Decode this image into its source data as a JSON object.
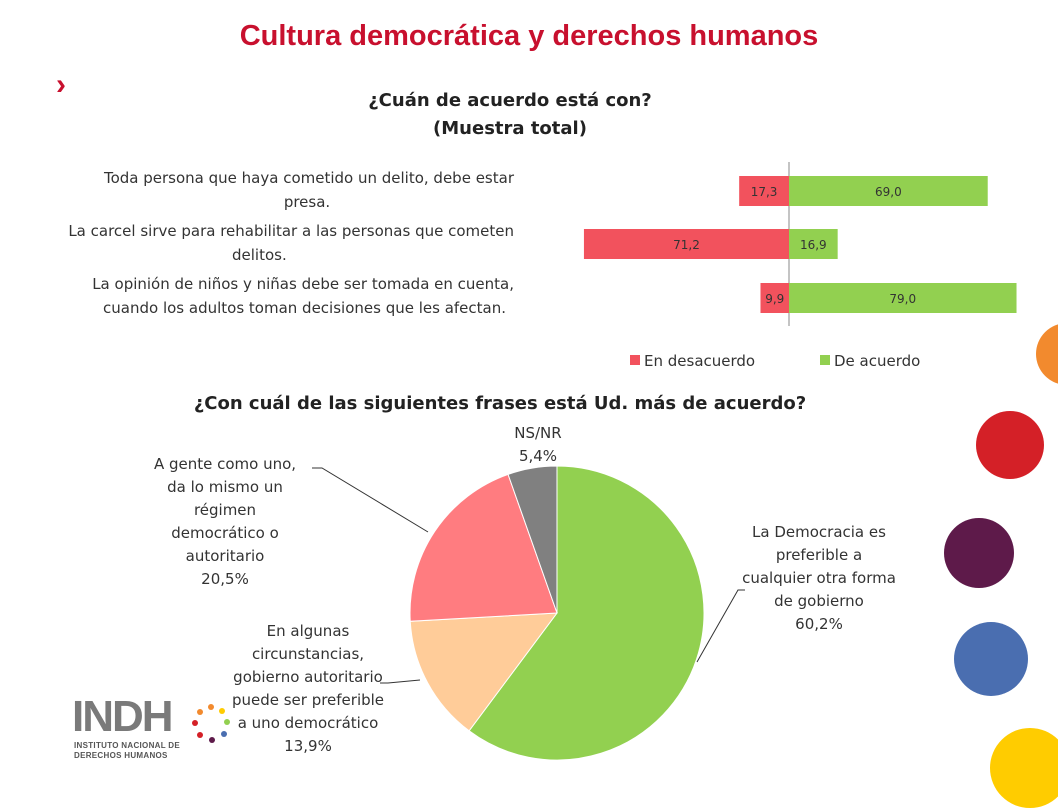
{
  "header": {
    "title": "Cultura democrática y derechos humanos",
    "chevron": "›"
  },
  "colors": {
    "red": "#f2525d",
    "green": "#92d050",
    "salmon": "#ff7c80",
    "peach": "#ffcc99",
    "gray": "#808080",
    "brand": "#c8102e"
  },
  "chart_data": [
    {
      "type": "bar",
      "orientation": "horizontal-diverging",
      "title": "¿Cuán de acuerdo está con?",
      "subtitle": "(Muestra total)",
      "categories": [
        "Toda persona que haya cometido un delito, debe estar presa.",
        "La carcel sirve para rehabilitar a las personas que cometen delitos.",
        "La opinión de niños y niñas debe ser tomada en cuenta, cuando los adultos toman decisiones que les afectan."
      ],
      "category_lines": [
        [
          "Toda persona que haya cometido un delito, debe estar",
          "presa."
        ],
        [
          "La carcel sirve para rehabilitar a las personas que cometen",
          "delitos."
        ],
        [
          "La opinión de niños y niñas debe ser tomada en cuenta,",
          "cuando los adultos toman decisiones que les afectan."
        ]
      ],
      "series": [
        {
          "name": "En desacuerdo",
          "values": [
            17.3,
            71.2,
            9.9
          ],
          "labels": [
            "17,3",
            "71,2",
            "9,9"
          ],
          "color": "#f2525d"
        },
        {
          "name": "De acuerdo",
          "values": [
            69.0,
            16.9,
            79.0
          ],
          "labels": [
            "69,0",
            "16,9",
            "79,0"
          ],
          "color": "#92d050"
        }
      ],
      "legend": "bottom-right"
    },
    {
      "type": "pie",
      "title": "¿Con cuál de las siguientes frases está Ud. más de acuerdo?",
      "slices": [
        {
          "label": "La Democracia es preferible a cualquier otra forma de gobierno",
          "lines": [
            "La Democracia es",
            "preferible a",
            "cualquier otra forma",
            "de gobierno"
          ],
          "value": 60.2,
          "value_label": "60,2%",
          "color": "#92d050"
        },
        {
          "label": "En algunas circunstancias, gobierno autoritario puede ser preferible a uno democrático",
          "lines": [
            "En algunas",
            "circunstancias,",
            "gobierno autoritario",
            "puede ser preferible",
            "a uno democrático"
          ],
          "value": 13.9,
          "value_label": "13,9%",
          "color": "#ffcc99"
        },
        {
          "label": "A gente como uno, da lo mismo un régimen democrático o autoritario",
          "lines": [
            "A gente como uno,",
            "da lo mismo un",
            "régimen",
            "democrático o",
            "autoritario"
          ],
          "value": 20.5,
          "value_label": "20,5%",
          "color": "#ff7c80"
        },
        {
          "label": "NS/NR",
          "lines": [
            "NS/NR"
          ],
          "value": 5.4,
          "value_label": "5,4%",
          "color": "#808080"
        }
      ]
    }
  ],
  "logo": {
    "text": "INDH",
    "subtitle_line1": "INSTITUTO NACIONAL DE",
    "subtitle_line2": "DERECHOS HUMANOS"
  },
  "decor": {
    "circle_colors": [
      "#f28a2e",
      "#d42027",
      "#5e1a4a",
      "#4a6eb0",
      "#ffcc00"
    ]
  }
}
